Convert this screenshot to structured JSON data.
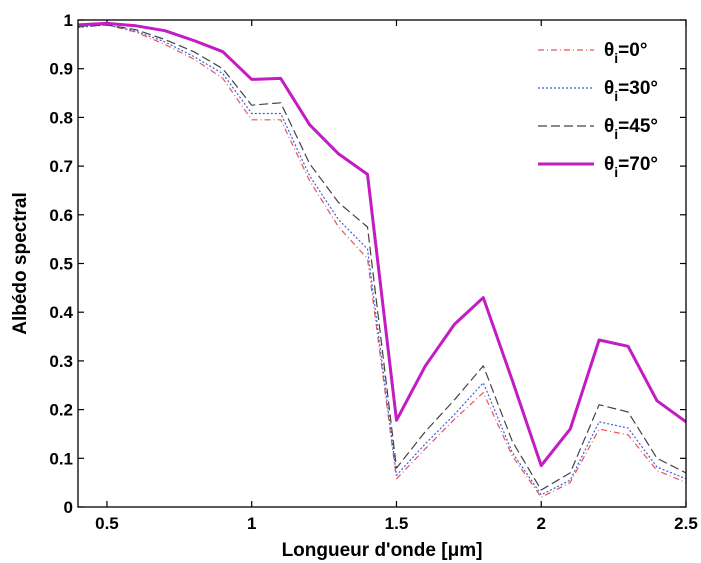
{
  "chart_data": {
    "type": "line",
    "title": "",
    "xlabel": "Longueur d'onde [μm]",
    "ylabel": "Albédo spectral",
    "xlim": [
      0.4,
      2.5
    ],
    "ylim": [
      0,
      1
    ],
    "xticks": [
      0.5,
      1,
      1.5,
      2,
      2.5
    ],
    "xtick_labels": [
      "0.5",
      "1",
      "1.5",
      "2",
      "2.5"
    ],
    "yticks": [
      0,
      0.1,
      0.2,
      0.3,
      0.4,
      0.5,
      0.6,
      0.7,
      0.8,
      0.9,
      1
    ],
    "ytick_labels": [
      "0",
      "0.1",
      "0.2",
      "0.3",
      "0.4",
      "0.5",
      "0.6",
      "0.7",
      "0.8",
      "0.9",
      "1"
    ],
    "grid": false,
    "legend_position": "top-right",
    "x": [
      0.4,
      0.5,
      0.6,
      0.7,
      0.8,
      0.9,
      1.0,
      1.1,
      1.2,
      1.3,
      1.4,
      1.5,
      1.6,
      1.7,
      1.8,
      1.9,
      2.0,
      2.1,
      2.2,
      2.3,
      2.4,
      2.5
    ],
    "series": [
      {
        "name": "θi=0°",
        "name_main": "θ",
        "name_sub": "i",
        "name_rest": "=0°",
        "color": "#e8545a",
        "dash": "6,3,1,3",
        "width": 1.2,
        "values": [
          0.985,
          0.99,
          0.975,
          0.95,
          0.92,
          0.88,
          0.795,
          0.795,
          0.67,
          0.575,
          0.51,
          0.058,
          0.12,
          0.18,
          0.235,
          0.105,
          0.02,
          0.05,
          0.16,
          0.148,
          0.075,
          0.05
        ]
      },
      {
        "name": "θi=30°",
        "name_main": "θ",
        "name_sub": "i",
        "name_rest": "=30°",
        "color": "#3f5fd8",
        "dash": "2,2",
        "width": 1.2,
        "values": [
          0.985,
          0.99,
          0.977,
          0.955,
          0.925,
          0.89,
          0.808,
          0.808,
          0.68,
          0.59,
          0.53,
          0.065,
          0.13,
          0.19,
          0.255,
          0.112,
          0.025,
          0.055,
          0.175,
          0.162,
          0.082,
          0.058
        ]
      },
      {
        "name": "θi=45°",
        "name_main": "θ",
        "name_sub": "i",
        "name_rest": "=45°",
        "color": "#444444",
        "dash": "9,4",
        "width": 1.2,
        "values": [
          0.987,
          0.99,
          0.98,
          0.96,
          0.935,
          0.9,
          0.825,
          0.83,
          0.705,
          0.625,
          0.575,
          0.08,
          0.155,
          0.22,
          0.29,
          0.135,
          0.035,
          0.07,
          0.21,
          0.195,
          0.1,
          0.07
        ]
      },
      {
        "name": "θi=70°",
        "name_main": "θ",
        "name_sub": "i",
        "name_rest": "=70°",
        "color": "#c21cc2",
        "dash": "",
        "width": 3,
        "values": [
          0.99,
          0.993,
          0.988,
          0.978,
          0.958,
          0.935,
          0.878,
          0.88,
          0.785,
          0.725,
          0.683,
          0.178,
          0.29,
          0.375,
          0.43,
          0.26,
          0.085,
          0.16,
          0.343,
          0.33,
          0.218,
          0.175
        ]
      }
    ]
  }
}
